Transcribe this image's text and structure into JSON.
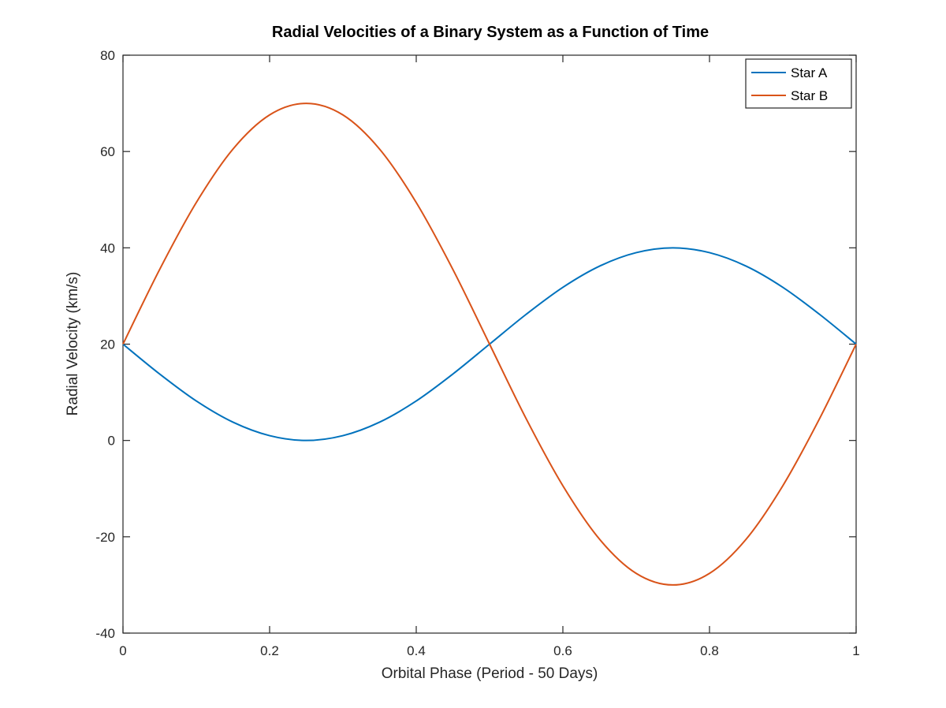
{
  "chart_data": {
    "type": "line",
    "title": "Radial Velocities of a Binary System as a Function of Time",
    "xlabel": "Orbital Phase (Period - 50 Days)",
    "ylabel": "Radial Velocity (km/s)",
    "xlim": [
      0,
      1
    ],
    "ylim": [
      -40,
      80
    ],
    "xticks": [
      0,
      0.2,
      0.4,
      0.6,
      0.8,
      1
    ],
    "xtick_labels": [
      "0",
      "0.2",
      "0.4",
      "0.6",
      "0.8",
      "1"
    ],
    "yticks": [
      -40,
      -20,
      0,
      20,
      40,
      60,
      80
    ],
    "ytick_labels": [
      "-40",
      "-20",
      "0",
      "20",
      "40",
      "60",
      "80"
    ],
    "grid": false,
    "legend_position": "top-right",
    "x": [
      0,
      0.05,
      0.1,
      0.15,
      0.2,
      0.25,
      0.3,
      0.35,
      0.4,
      0.45,
      0.5,
      0.55,
      0.6,
      0.65,
      0.7,
      0.75,
      0.8,
      0.85,
      0.9,
      0.95,
      1
    ],
    "series": [
      {
        "name": "Star A",
        "color": "#0072bd",
        "values": [
          20,
          13.8,
          8.2,
          3.8,
          1.0,
          0,
          1.0,
          3.8,
          8.2,
          13.8,
          20,
          26.2,
          31.8,
          36.2,
          39.0,
          40,
          39.0,
          36.2,
          31.8,
          26.2,
          20
        ]
      },
      {
        "name": "Star B",
        "color": "#d95319",
        "values": [
          20,
          35.5,
          49.4,
          60.5,
          67.6,
          70,
          67.6,
          60.5,
          49.4,
          35.5,
          20,
          4.5,
          -9.4,
          -20.5,
          -27.6,
          -30,
          -27.6,
          -20.5,
          -9.4,
          4.5,
          20
        ]
      }
    ]
  }
}
